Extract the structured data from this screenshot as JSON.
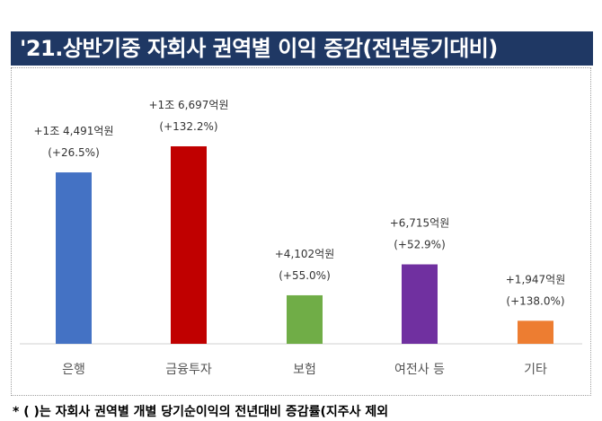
{
  "title": "'21.상반기중 자회사 권역별 이익 증감(전년동기대비)",
  "footnote": "* ( )는 자회사 권역별 개별 당기순이익의 전년대비 증감률(지주사 제외",
  "chart_data": {
    "type": "bar",
    "categories": [
      "은행",
      "금융투자",
      "보험",
      "여전사 등",
      "기타"
    ],
    "values": [
      14491,
      16697,
      4102,
      6715,
      1947
    ],
    "value_labels": [
      "+1조 4,491억원",
      "+1조 6,697억원",
      "+4,102억원",
      "+6,715억원",
      "+1,947억원"
    ],
    "pct_labels": [
      "(+26.5%)",
      "(+132.2%)",
      "(+55.0%)",
      "(+52.9%)",
      "(+138.0%)"
    ],
    "colors": [
      "#4472c4",
      "#c00000",
      "#70ad47",
      "#7030a0",
      "#ed7d31"
    ],
    "ylim": [
      0,
      17000
    ],
    "grid": false,
    "legend": "none"
  }
}
